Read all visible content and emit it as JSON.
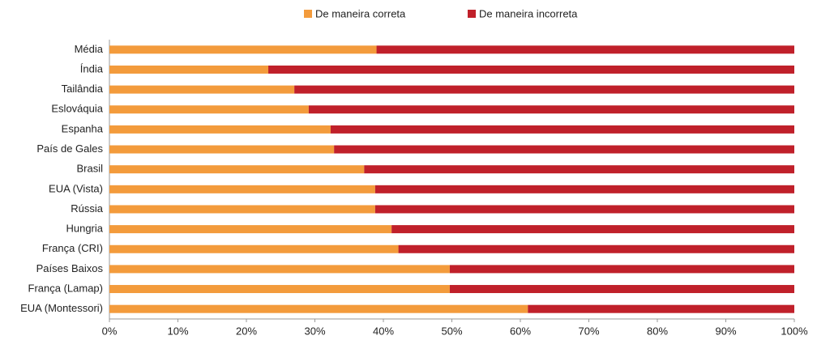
{
  "chart_data": {
    "type": "stacked_hbar",
    "categories": [
      "Média",
      "Índia",
      "Tailândia",
      "Eslováquia",
      "Espanha",
      "País de Gales",
      "Brasil",
      "EUA (Vista)",
      "Rússia",
      "Hungria",
      "França (CRI)",
      "Países Baixos",
      "França (Lamap)",
      "EUA (Montessori)"
    ],
    "series": [
      {
        "name": "De maneira correta",
        "color": "#f39b3c",
        "values": [
          39,
          23.2,
          27,
          29.1,
          32.3,
          32.8,
          37.2,
          38.8,
          38.8,
          41.2,
          42.2,
          49.7,
          49.7,
          61.1
        ]
      },
      {
        "name": "De maneira incorreta",
        "color": "#c0202a",
        "values": [
          61,
          76.8,
          73,
          70.9,
          67.7,
          67.2,
          62.8,
          61.2,
          61.2,
          58.8,
          57.8,
          50.3,
          50.3,
          38.9
        ]
      }
    ],
    "xlim": [
      0,
      100
    ],
    "xticks": [
      {
        "value": 0,
        "label": "0%"
      },
      {
        "value": 10,
        "label": "10%"
      },
      {
        "value": 20,
        "label": "20%"
      },
      {
        "value": 30,
        "label": "30%"
      },
      {
        "value": 40,
        "label": "40%"
      },
      {
        "value": 50,
        "label": "50%"
      },
      {
        "value": 60,
        "label": "60%"
      },
      {
        "value": 70,
        "label": "70%"
      },
      {
        "value": 80,
        "label": "80%"
      },
      {
        "value": 90,
        "label": "90%"
      },
      {
        "value": 100,
        "label": "100%"
      }
    ],
    "legend": "top"
  }
}
